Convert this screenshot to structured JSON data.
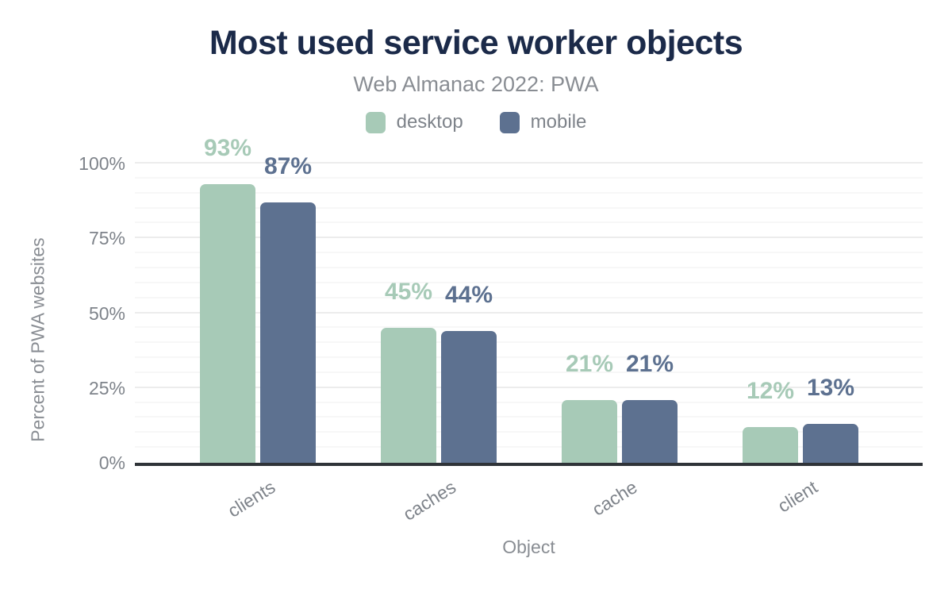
{
  "chart_data": {
    "type": "bar",
    "title": "Most used service worker objects",
    "subtitle": "Web Almanac 2022: PWA",
    "xlabel": "Object",
    "ylabel": "Percent of PWA websites",
    "categories": [
      "clients",
      "caches",
      "cache",
      "client"
    ],
    "series": [
      {
        "name": "desktop",
        "color": "#a7cab7",
        "values": [
          93,
          45,
          21,
          12
        ],
        "labels": [
          "93%",
          "45%",
          "21%",
          "12%"
        ]
      },
      {
        "name": "mobile",
        "color": "#5d7190",
        "values": [
          87,
          44,
          21,
          13
        ],
        "labels": [
          "87%",
          "44%",
          "21%",
          "13%"
        ]
      }
    ],
    "ylim": [
      0,
      100
    ],
    "y_ticks": [
      {
        "value": 0,
        "label": "0%"
      },
      {
        "value": 25,
        "label": "25%"
      },
      {
        "value": 50,
        "label": "50%"
      },
      {
        "value": 75,
        "label": "75%"
      },
      {
        "value": 100,
        "label": "100%"
      }
    ],
    "grid": {
      "minor_step": 5,
      "major_step": 25,
      "orientation": "horizontal"
    },
    "legend_position": "top"
  },
  "colors": {
    "title": "#1b2a49",
    "subtitle": "#898d93",
    "axis_text": "#7e838a",
    "axis_line": "#2f3338",
    "grid_minor": "#f7f7f7",
    "grid_major": "#ececec",
    "background": "#ffffff"
  }
}
